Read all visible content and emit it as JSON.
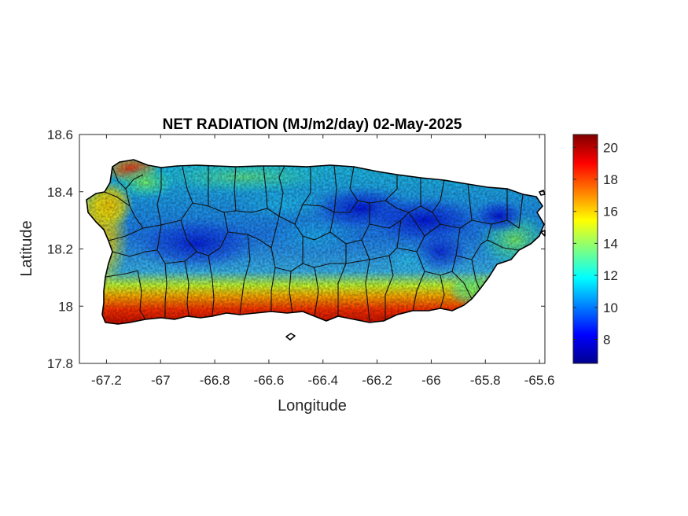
{
  "map": {
    "title": "NET RADIATION (MJ/m2/day) 02-May-2025",
    "xlabel": "Longitude",
    "ylabel": "Latitude",
    "xlim": [
      -67.3,
      -65.58
    ],
    "ylim": [
      17.8,
      18.6
    ],
    "x_ticks": [
      "-67.2",
      "-67",
      "-66.8",
      "-66.6",
      "-66.4",
      "-66.2",
      "-66",
      "-65.8",
      "-65.6"
    ],
    "x_tick_values": [
      -67.2,
      -67.0,
      -66.8,
      -66.6,
      -66.4,
      -66.2,
      -66.0,
      -65.8,
      -65.6
    ],
    "y_ticks": [
      "17.8",
      "18",
      "18.2",
      "18.4",
      "18.6"
    ],
    "y_tick_values": [
      17.8,
      18.0,
      18.2,
      18.4,
      18.6
    ],
    "colorbar": {
      "colormap": "jet",
      "range": [
        6.5,
        20.8
      ],
      "ticks": [
        "8",
        "10",
        "12",
        "14",
        "16",
        "18",
        "20"
      ],
      "tick_values": [
        8,
        10,
        12,
        14,
        16,
        18,
        20
      ]
    }
  }
}
